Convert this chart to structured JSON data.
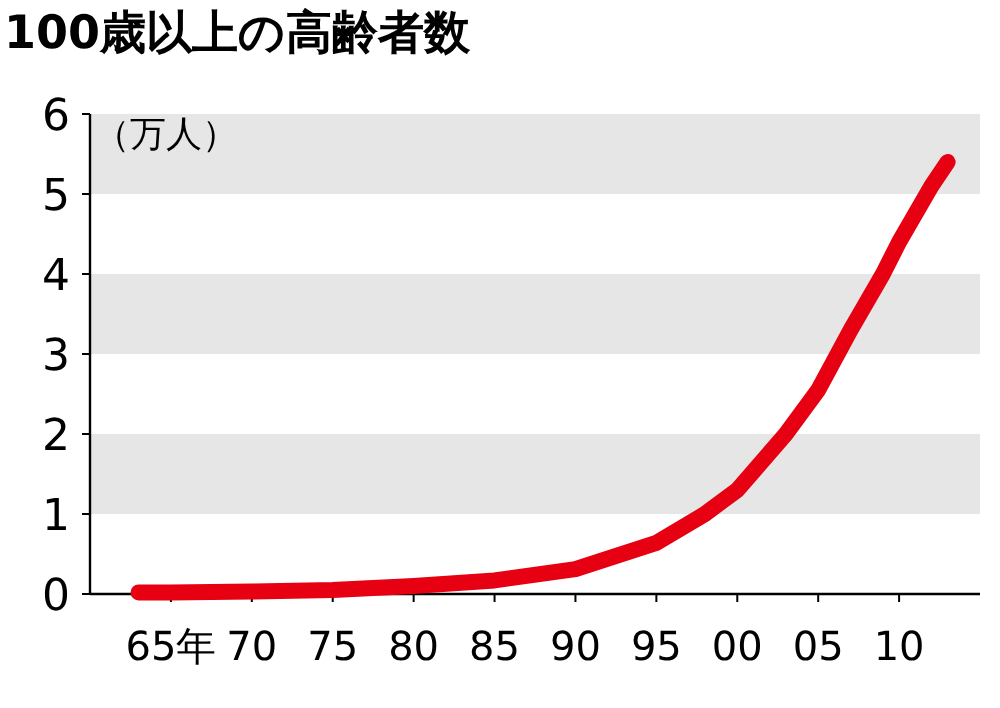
{
  "chart_data": {
    "type": "line",
    "title": "100歳以上の高齢者数",
    "ylabel": "（万人）",
    "x": [
      "1963",
      "1965",
      "1970",
      "1975",
      "1980",
      "1985",
      "1990",
      "1995",
      "1998",
      "2000",
      "2003",
      "2005",
      "2007",
      "2009",
      "2010",
      "2012",
      "2013"
    ],
    "series": [
      {
        "color": "#e60012",
        "values": [
          0.02,
          0.02,
          0.03,
          0.05,
          0.1,
          0.17,
          0.31,
          0.64,
          1.0,
          1.3,
          2.0,
          2.55,
          3.3,
          4.0,
          4.4,
          5.1,
          5.4
        ]
      }
    ],
    "xlim": [
      "1960",
      "2015"
    ],
    "ylim": [
      0,
      6
    ],
    "xticks": [
      {
        "value": "1965",
        "label": "65年"
      },
      {
        "value": "1970",
        "label": "70"
      },
      {
        "value": "1975",
        "label": "75"
      },
      {
        "value": "1980",
        "label": "80"
      },
      {
        "value": "1985",
        "label": "85"
      },
      {
        "value": "1990",
        "label": "90"
      },
      {
        "value": "1995",
        "label": "95"
      },
      {
        "value": "2000",
        "label": "00"
      },
      {
        "value": "2005",
        "label": "05"
      },
      {
        "value": "2010",
        "label": "10"
      }
    ],
    "yticks": [
      0,
      1,
      2,
      3,
      4,
      5,
      6
    ],
    "bands": [
      {
        "axis": "y",
        "from": 1,
        "to": 2,
        "color": "#e6e6e6"
      },
      {
        "axis": "y",
        "from": 3,
        "to": 4,
        "color": "#e6e6e6"
      },
      {
        "axis": "y",
        "from": 5,
        "to": 6,
        "color": "#e6e6e6"
      }
    ],
    "grid": false,
    "marker": "none",
    "line_style": "solid"
  }
}
